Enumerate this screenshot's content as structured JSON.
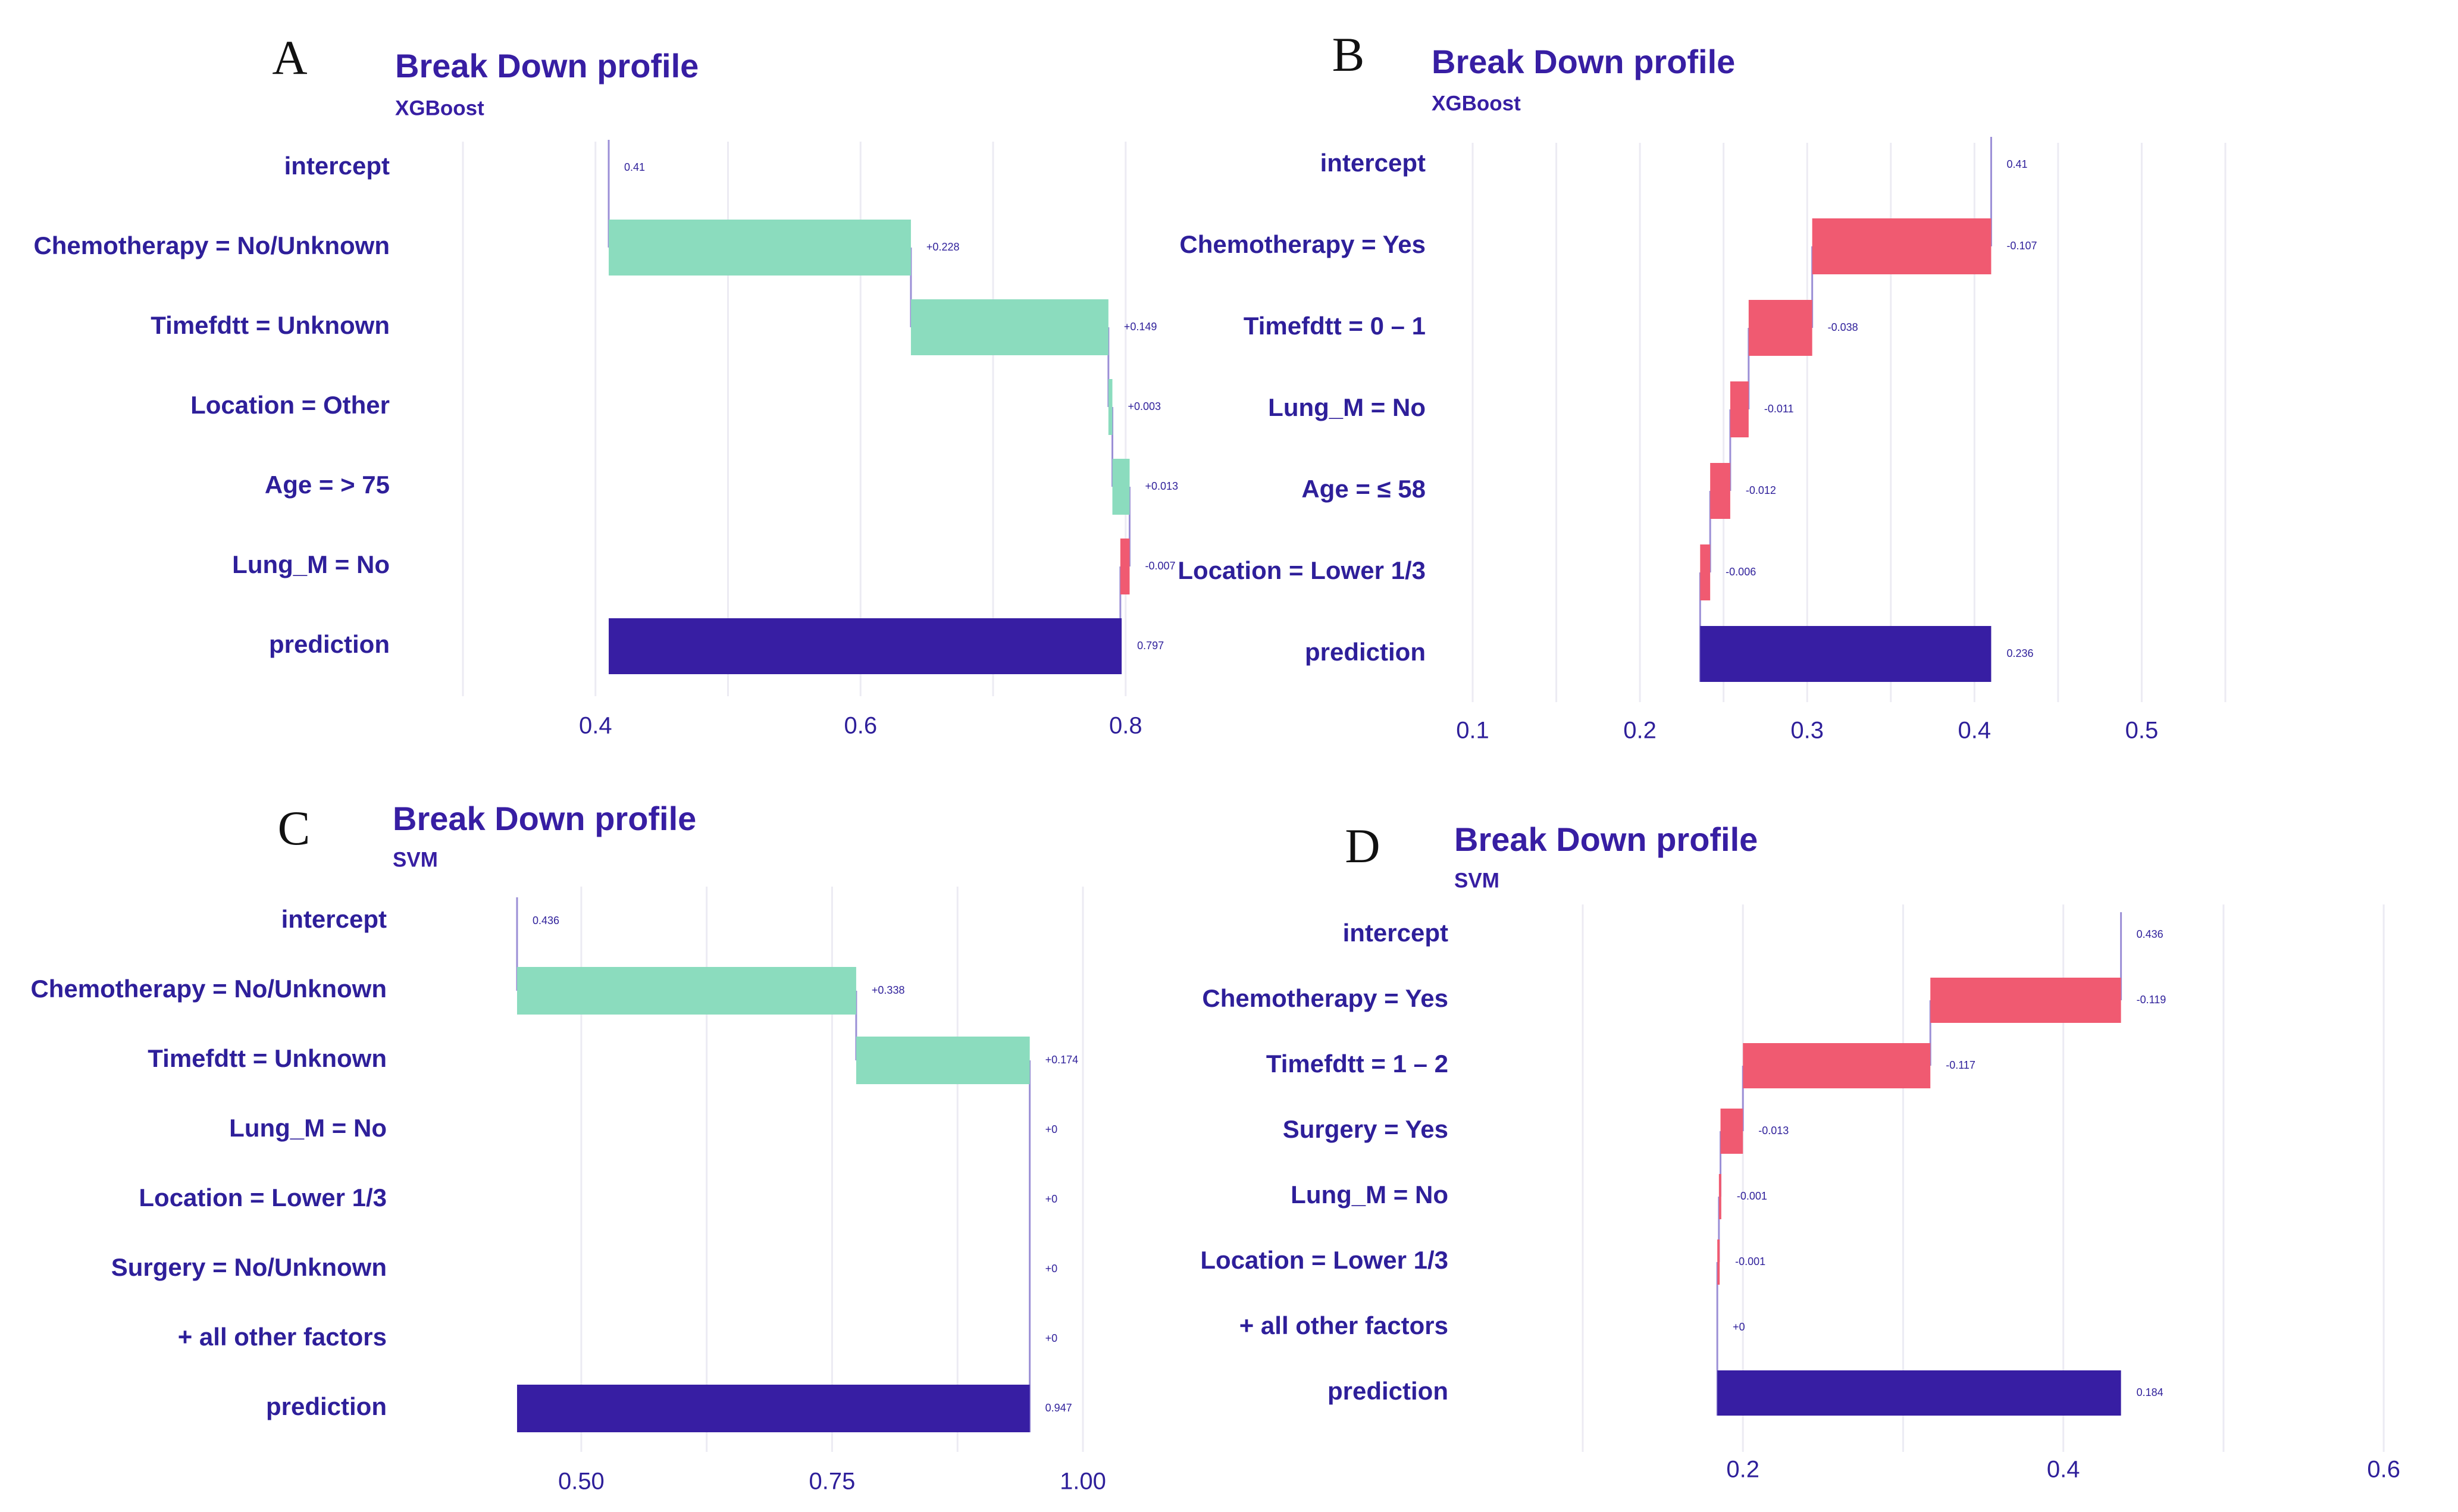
{
  "colors": {
    "title": "#371ea3",
    "text": "#2e1f9a",
    "increase": "#8bdcbe",
    "decrease": "#f05a71",
    "prediction": "#371ea3",
    "connector": "#9b8fd6",
    "grid": "#ecebf3",
    "background": "#ffffff"
  },
  "chart_data": [
    {
      "id": "A",
      "type": "waterfall",
      "panel_label": "A",
      "title": "Break Down profile",
      "subtitle": "XGBoost",
      "xlim": [
        0.3,
        0.88
      ],
      "xticks": [
        0.4,
        0.6,
        0.8
      ],
      "xtick_labels": [
        "0.4",
        "0.6",
        "0.8"
      ],
      "rows": [
        {
          "label": "intercept",
          "kind": "intercept",
          "start": 0.41,
          "end": 0.41,
          "value_label": "0.41"
        },
        {
          "label": "Chemotherapy = No/Unknown",
          "kind": "increase",
          "start": 0.41,
          "end": 0.638,
          "value_label": "+0.228"
        },
        {
          "label": "Timefdtt = Unknown",
          "kind": "increase",
          "start": 0.638,
          "end": 0.787,
          "value_label": "+0.149"
        },
        {
          "label": "Location = Other",
          "kind": "increase",
          "start": 0.787,
          "end": 0.79,
          "value_label": "+0.003"
        },
        {
          "label": "Age = > 75",
          "kind": "increase",
          "start": 0.79,
          "end": 0.803,
          "value_label": "+0.013"
        },
        {
          "label": "Lung_M = No",
          "kind": "decrease",
          "start": 0.803,
          "end": 0.796,
          "value_label": "-0.007"
        },
        {
          "label": "prediction",
          "kind": "prediction",
          "start": 0.41,
          "end": 0.797,
          "value_label": "0.797"
        }
      ]
    },
    {
      "id": "B",
      "type": "waterfall",
      "panel_label": "B",
      "title": "Break Down profile",
      "subtitle": "XGBoost",
      "xlim": [
        0.1,
        0.55
      ],
      "xticks": [
        0.1,
        0.2,
        0.3,
        0.4,
        0.5
      ],
      "xtick_labels": [
        "0.1",
        "0.2",
        "0.3",
        "0.4",
        "0.5"
      ],
      "rows": [
        {
          "label": "intercept",
          "kind": "intercept",
          "start": 0.41,
          "end": 0.41,
          "value_label": "0.41"
        },
        {
          "label": "Chemotherapy = Yes",
          "kind": "decrease",
          "start": 0.41,
          "end": 0.303,
          "value_label": "-0.107"
        },
        {
          "label": "Timefdtt = 0 – 1",
          "kind": "decrease",
          "start": 0.303,
          "end": 0.265,
          "value_label": "-0.038"
        },
        {
          "label": "Lung_M = No",
          "kind": "decrease",
          "start": 0.265,
          "end": 0.254,
          "value_label": "-0.011"
        },
        {
          "label": "Age = ≤ 58",
          "kind": "decrease",
          "start": 0.254,
          "end": 0.242,
          "value_label": "-0.012"
        },
        {
          "label": "Location = Lower 1/3",
          "kind": "decrease",
          "start": 0.242,
          "end": 0.236,
          "value_label": "-0.006"
        },
        {
          "label": "prediction",
          "kind": "prediction",
          "start": 0.41,
          "end": 0.236,
          "value_label": "0.236"
        }
      ]
    },
    {
      "id": "C",
      "type": "waterfall",
      "panel_label": "C",
      "title": "Break Down profile",
      "subtitle": "SVM",
      "xlim": [
        0.42,
        1.0
      ],
      "xticks": [
        0.5,
        0.75,
        1.0
      ],
      "xtick_labels": [
        "0.50",
        "0.75",
        "1.00"
      ],
      "rows": [
        {
          "label": "intercept",
          "kind": "intercept",
          "start": 0.436,
          "end": 0.436,
          "value_label": "0.436"
        },
        {
          "label": "Chemotherapy = No/Unknown",
          "kind": "increase",
          "start": 0.436,
          "end": 0.774,
          "value_label": "+0.338"
        },
        {
          "label": "Timefdtt = Unknown",
          "kind": "increase",
          "start": 0.774,
          "end": 0.947,
          "value_label": "+0.174"
        },
        {
          "label": "Lung_M = No",
          "kind": "connector",
          "start": 0.947,
          "end": 0.947,
          "value_label": "+0"
        },
        {
          "label": "Location = Lower 1/3",
          "kind": "connector",
          "start": 0.947,
          "end": 0.947,
          "value_label": "+0"
        },
        {
          "label": "Surgery = No/Unknown",
          "kind": "connector",
          "start": 0.947,
          "end": 0.947,
          "value_label": "+0"
        },
        {
          "label": "+ all other factors",
          "kind": "connector",
          "start": 0.947,
          "end": 0.947,
          "value_label": "+0"
        },
        {
          "label": "prediction",
          "kind": "prediction",
          "start": 0.436,
          "end": 0.947,
          "value_label": "0.947"
        }
      ]
    },
    {
      "id": "D",
      "type": "waterfall",
      "panel_label": "D",
      "title": "Break Down profile",
      "subtitle": "SVM",
      "xlim": [
        0.1,
        0.62
      ],
      "xticks": [
        0.2,
        0.4,
        0.6
      ],
      "xtick_labels": [
        "0.2",
        "0.4",
        "0.6"
      ],
      "rows": [
        {
          "label": "intercept",
          "kind": "intercept",
          "start": 0.436,
          "end": 0.436,
          "value_label": "0.436"
        },
        {
          "label": "Chemotherapy = Yes",
          "kind": "decrease",
          "start": 0.436,
          "end": 0.317,
          "value_label": "-0.119"
        },
        {
          "label": "Timefdtt = 1 – 2",
          "kind": "decrease",
          "start": 0.317,
          "end": 0.2,
          "value_label": "-0.117"
        },
        {
          "label": "Surgery = Yes",
          "kind": "decrease",
          "start": 0.2,
          "end": 0.186,
          "value_label": "-0.013"
        },
        {
          "label": "Lung_M = No",
          "kind": "decrease",
          "start": 0.186,
          "end": 0.185,
          "value_label": "-0.001"
        },
        {
          "label": "Location = Lower 1/3",
          "kind": "decrease",
          "start": 0.185,
          "end": 0.184,
          "value_label": "-0.001"
        },
        {
          "label": "+ all other factors",
          "kind": "connector",
          "start": 0.184,
          "end": 0.184,
          "value_label": "+0"
        },
        {
          "label": "prediction",
          "kind": "prediction",
          "start": 0.436,
          "end": 0.184,
          "value_label": "0.184"
        }
      ]
    }
  ]
}
